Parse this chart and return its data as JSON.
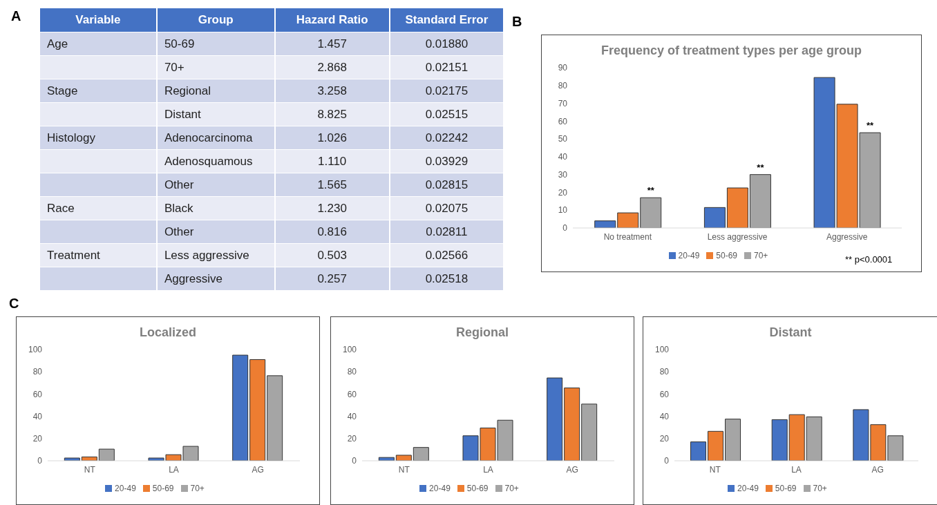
{
  "chart_data": [
    {
      "type": "other",
      "annotations": [
        "A"
      ],
      "categories": [
        "Variable",
        "Group",
        "Hazard Ratio",
        "Standard Error"
      ],
      "cell_labels": [
        [
          "Age",
          "50-69",
          "1.457",
          "0.01880"
        ],
        [
          null,
          "70+",
          "2.868",
          "0.02151"
        ],
        [
          "Stage",
          "Regional",
          "3.258",
          "0.02175"
        ],
        [
          null,
          "Distant",
          "8.825",
          "0.02515"
        ],
        [
          "Histology",
          "Adenocarcinoma",
          "1.026",
          "0.02242"
        ],
        [
          null,
          "Adenosquamous",
          "1.110",
          "0.03929"
        ],
        [
          null,
          "Other",
          "1.565",
          "0.02815"
        ],
        [
          "Race",
          "Black",
          "1.230",
          "0.02075"
        ],
        [
          null,
          "Other",
          "0.816",
          "0.02811"
        ],
        [
          "Treatment",
          "Less aggressive",
          "0.503",
          "0.02566"
        ],
        [
          null,
          "Aggressive",
          "0.257",
          "0.02518"
        ]
      ]
    },
    {
      "type": "bar",
      "title": "Frequency of treatment types per age group",
      "categories": [
        "No treatment",
        "Less aggressive",
        "Aggressive"
      ],
      "series": [
        {
          "name": "20-49",
          "color": "#4472c4",
          "values": [
            4,
            11.5,
            84.5
          ]
        },
        {
          "name": "50-69",
          "color": "#ed7d31",
          "values": [
            8.5,
            22.5,
            69.5
          ]
        },
        {
          "name": "70+",
          "color": "#a5a5a5",
          "values": [
            17,
            30,
            53.5
          ]
        }
      ],
      "ylim": [
        0,
        90
      ],
      "yticks": [
        0,
        10,
        20,
        30,
        40,
        50,
        60,
        70,
        80,
        90
      ],
      "grid": false,
      "legend": "bottom",
      "annotations": [
        "B",
        "** p<0.0001",
        "**",
        "**",
        "**"
      ]
    },
    {
      "type": "bar",
      "title": "Localized",
      "categories": [
        "NT",
        "LA",
        "AG"
      ],
      "series": [
        {
          "name": "20-49",
          "color": "#4472c4",
          "values": [
            2.5,
            2.5,
            95
          ]
        },
        {
          "name": "50-69",
          "color": "#ed7d31",
          "values": [
            3.5,
            5.5,
            91
          ]
        },
        {
          "name": "70+",
          "color": "#a5a5a5",
          "values": [
            10.5,
            13,
            76.5
          ]
        }
      ],
      "ylim": [
        0,
        100
      ],
      "yticks": [
        0,
        20,
        40,
        60,
        80,
        100
      ],
      "grid": false,
      "legend": "bottom",
      "annotations": [
        "C"
      ]
    },
    {
      "type": "bar",
      "title": "Regional",
      "categories": [
        "NT",
        "LA",
        "AG"
      ],
      "series": [
        {
          "name": "20-49",
          "color": "#4472c4",
          "values": [
            3,
            22.5,
            74.5
          ]
        },
        {
          "name": "50-69",
          "color": "#ed7d31",
          "values": [
            5,
            29.5,
            65.5
          ]
        },
        {
          "name": "70+",
          "color": "#a5a5a5",
          "values": [
            12,
            36.5,
            51
          ]
        }
      ],
      "ylim": [
        0,
        100
      ],
      "yticks": [
        0,
        20,
        40,
        60,
        80,
        100
      ],
      "grid": false,
      "legend": "bottom"
    },
    {
      "type": "bar",
      "title": "Distant",
      "categories": [
        "NT",
        "LA",
        "AG"
      ],
      "series": [
        {
          "name": "20-49",
          "color": "#4472c4",
          "values": [
            17,
            37,
            46
          ]
        },
        {
          "name": "50-69",
          "color": "#ed7d31",
          "values": [
            26.5,
            41.5,
            32.5
          ]
        },
        {
          "name": "70+",
          "color": "#a5a5a5",
          "values": [
            37.5,
            39.5,
            22.5
          ]
        }
      ],
      "ylim": [
        0,
        100
      ],
      "yticks": [
        0,
        20,
        40,
        60,
        80,
        100
      ],
      "grid": false,
      "legend": "bottom"
    }
  ]
}
